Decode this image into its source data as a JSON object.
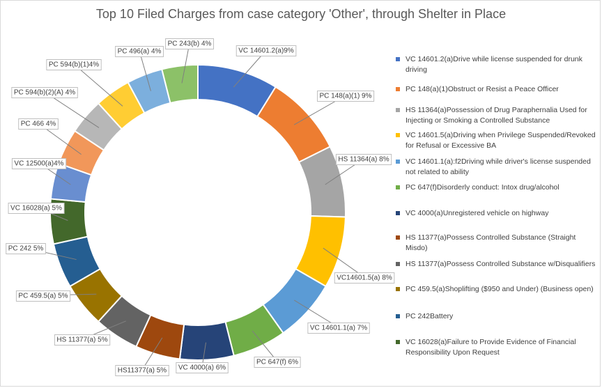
{
  "chart_data": {
    "type": "pie",
    "title": "Top 10 Filed Charges from case category 'Other', through Shelter in Place",
    "legend_position": "right",
    "slices": [
      {
        "label": "VC 14601.2(a)9%",
        "legend": "VC  14601.2(a)Drive while license suspended for drunk driving",
        "value": 9,
        "color": "#4472c4"
      },
      {
        "label": "PC 148(a)(1) 9%",
        "legend": "PC  148(a)(1)Obstruct or Resist a Peace Officer",
        "value": 9,
        "color": "#ed7d31"
      },
      {
        "label": "HS 11364(a) 8%",
        "legend": "HS  11364(a)Possession of Drug Paraphernalia Used for Injecting or Smoking a Controlled Substance",
        "value": 8,
        "color": "#a5a5a5"
      },
      {
        "label": "VC14601.5(a) 8%",
        "legend": "VC  14601.5(a)Driving when Privilege Suspended/Revoked for Refusal or Excessive BA",
        "value": 8,
        "color": "#ffc000"
      },
      {
        "label": "VC 14601.1(a) 7%",
        "legend": "VC  14601.1(a):f2Driving while driver's license suspended not related to ability",
        "value": 7,
        "color": "#5b9bd5"
      },
      {
        "label": "PC 647(f) 6%",
        "legend": "PC  647(f)Disorderly conduct: Intox drug/alcohol",
        "value": 6,
        "color": "#70ad47"
      },
      {
        "label": "VC 4000(a) 6%",
        "legend": "VC  4000(a)Unregistered vehicle on highway",
        "value": 6,
        "color": "#264478"
      },
      {
        "label": "HS11377(a) 5%",
        "legend": "HS  11377(a)Possess Controlled Substance (Straight Misdo)",
        "value": 5,
        "color": "#9e480e"
      },
      {
        "label": "HS 11377(a) 5%",
        "legend": "HS  11377(a)Possess Controlled Substance w/Disqualifiers",
        "value": 5,
        "color": "#636363"
      },
      {
        "label": "PC 459.5(a) 5%",
        "legend": "PC  459.5(a)Shoplifting ($950 and Under) (Business open)",
        "value": 5,
        "color": "#997300"
      },
      {
        "label": "PC 242 5%",
        "legend": "PC  242Battery",
        "value": 5,
        "color": "#255e91"
      },
      {
        "label": "VC 16028(a) 5%",
        "legend": "VC  16028(a)Failure to Provide Evidence of Financial Responsibility Upon Request",
        "value": 5,
        "color": "#43682b"
      },
      {
        "label": "VC 12500(a)4%",
        "legend": "",
        "value": 4,
        "color": "#698ed0"
      },
      {
        "label": "PC 466 4%",
        "legend": "",
        "value": 4,
        "color": "#f1975a"
      },
      {
        "label": "PC 594(b)(2)(A) 4%",
        "legend": "",
        "value": 4,
        "color": "#b7b7b7"
      },
      {
        "label": "PC 594(b)(1)4%",
        "legend": "",
        "value": 4,
        "color": "#ffcd33"
      },
      {
        "label": "PC 496(a) 4%",
        "legend": "",
        "value": 4,
        "color": "#7cafdd"
      },
      {
        "label": "PC 243(b) 4%",
        "legend": "",
        "value": 4,
        "color": "#8cc168"
      }
    ]
  }
}
